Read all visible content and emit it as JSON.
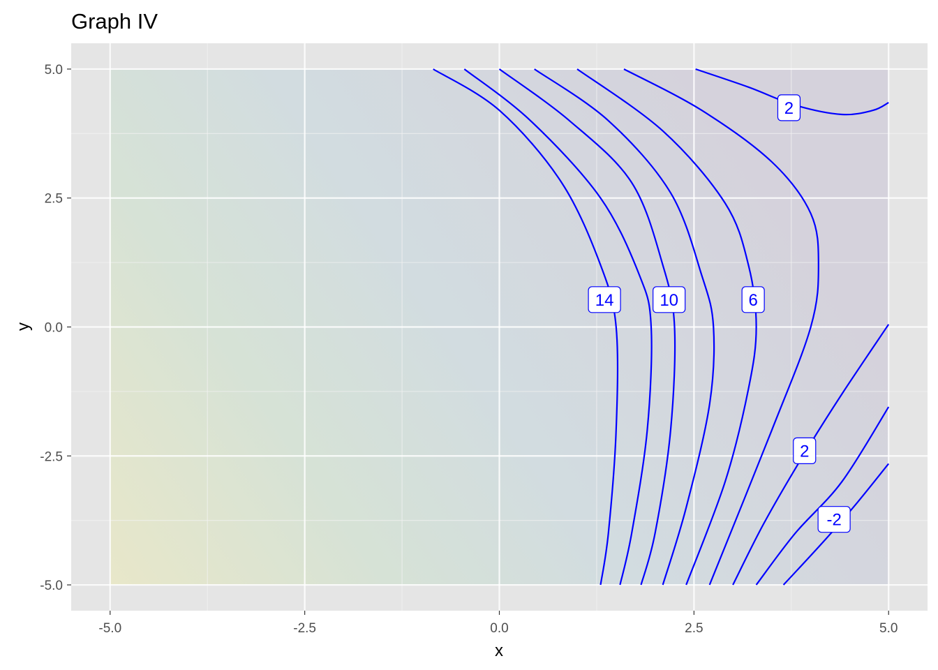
{
  "chart_data": {
    "type": "contour",
    "title": "Graph IV",
    "xlabel": "x",
    "ylabel": "y",
    "xlim": [
      -5.5,
      5.5
    ],
    "ylim": [
      -5.5,
      5.5
    ],
    "x_ticks": [
      -5,
      -2.5,
      0,
      2.5,
      5
    ],
    "y_ticks": [
      -5,
      -2.5,
      0,
      2.5,
      5
    ],
    "x_tick_labels": [
      "-5.0",
      "-2.5",
      "0.0",
      "2.5",
      "5.0"
    ],
    "y_tick_labels": [
      "-5.0",
      "-2.5",
      "0.0",
      "2.5",
      "5.0"
    ],
    "grid": true,
    "panel_background": "#e5e5e5",
    "contour_color": "#0000ff",
    "fill_gradient": {
      "colors": [
        "#e8e7c9",
        "#d6e2d6",
        "#d2dce0",
        "#d5d2dc"
      ],
      "opacity": 1
    },
    "contours": [
      {
        "points": [
          [
            -0.85,
            5
          ],
          [
            0,
            4.2
          ],
          [
            0.8,
            2.8
          ],
          [
            1.3,
            1.2
          ],
          [
            1.5,
            0
          ],
          [
            1.5,
            -2
          ],
          [
            1.4,
            -4
          ],
          [
            1.3,
            -5
          ]
        ]
      },
      {
        "points": [
          [
            -0.45,
            5
          ],
          [
            0.4,
            4
          ],
          [
            1.3,
            2.5
          ],
          [
            1.8,
            1
          ],
          [
            1.95,
            0
          ],
          [
            1.9,
            -2
          ],
          [
            1.7,
            -4
          ],
          [
            1.55,
            -5
          ]
        ]
      },
      {
        "points": [
          [
            0,
            5
          ],
          [
            0.9,
            4
          ],
          [
            1.7,
            2.8
          ],
          [
            2.1,
            1.2
          ],
          [
            2.25,
            0
          ],
          [
            2.2,
            -2
          ],
          [
            2,
            -4
          ],
          [
            1.82,
            -5
          ]
        ]
      },
      {
        "points": [
          [
            0.45,
            5
          ],
          [
            1.4,
            4
          ],
          [
            2.2,
            2.6
          ],
          [
            2.6,
            1
          ],
          [
            2.75,
            0
          ],
          [
            2.7,
            -1.5
          ],
          [
            2.4,
            -3.5
          ],
          [
            2.1,
            -5
          ]
        ]
      },
      {
        "points": [
          [
            1,
            5
          ],
          [
            2.1,
            3.8
          ],
          [
            2.9,
            2.4
          ],
          [
            3.2,
            1.2
          ],
          [
            3.3,
            0
          ],
          [
            3.2,
            -1.2
          ],
          [
            2.9,
            -3
          ],
          [
            2.4,
            -5
          ]
        ]
      },
      {
        "points": [
          [
            1.6,
            5
          ],
          [
            2.6,
            4.2
          ],
          [
            3.5,
            3.2
          ],
          [
            4,
            2.2
          ],
          [
            4.1,
            1.2
          ],
          [
            4,
            0
          ],
          [
            3.5,
            -2
          ],
          [
            2.7,
            -5
          ]
        ]
      },
      {
        "points": [
          [
            2.52,
            5
          ],
          [
            3.2,
            4.65
          ],
          [
            3.8,
            4.3
          ],
          [
            4.4,
            4.12
          ],
          [
            4.8,
            4.2
          ],
          [
            5,
            4.35
          ]
        ]
      },
      {
        "points": [
          [
            3,
            -5
          ],
          [
            3.4,
            -3.8
          ],
          [
            3.9,
            -2.5
          ],
          [
            4.4,
            -1.3
          ],
          [
            5,
            0.05
          ]
        ]
      },
      {
        "points": [
          [
            3.3,
            -5
          ],
          [
            3.8,
            -4
          ],
          [
            4.4,
            -3
          ],
          [
            5,
            -1.55
          ]
        ]
      },
      {
        "points": [
          [
            3.65,
            -5
          ],
          [
            4.2,
            -4.1
          ],
          [
            4.6,
            -3.4
          ],
          [
            5,
            -2.65
          ]
        ]
      }
    ],
    "contour_labels": [
      {
        "text": "14",
        "x": 1.35,
        "y": 0.53
      },
      {
        "text": "10",
        "x": 2.18,
        "y": 0.53
      },
      {
        "text": "6",
        "x": 3.26,
        "y": 0.53
      },
      {
        "text": "2",
        "x": 3.72,
        "y": 4.25
      },
      {
        "text": "2",
        "x": 3.92,
        "y": -2.4
      },
      {
        "text": "-2",
        "x": 4.3,
        "y": -3.73
      }
    ]
  }
}
